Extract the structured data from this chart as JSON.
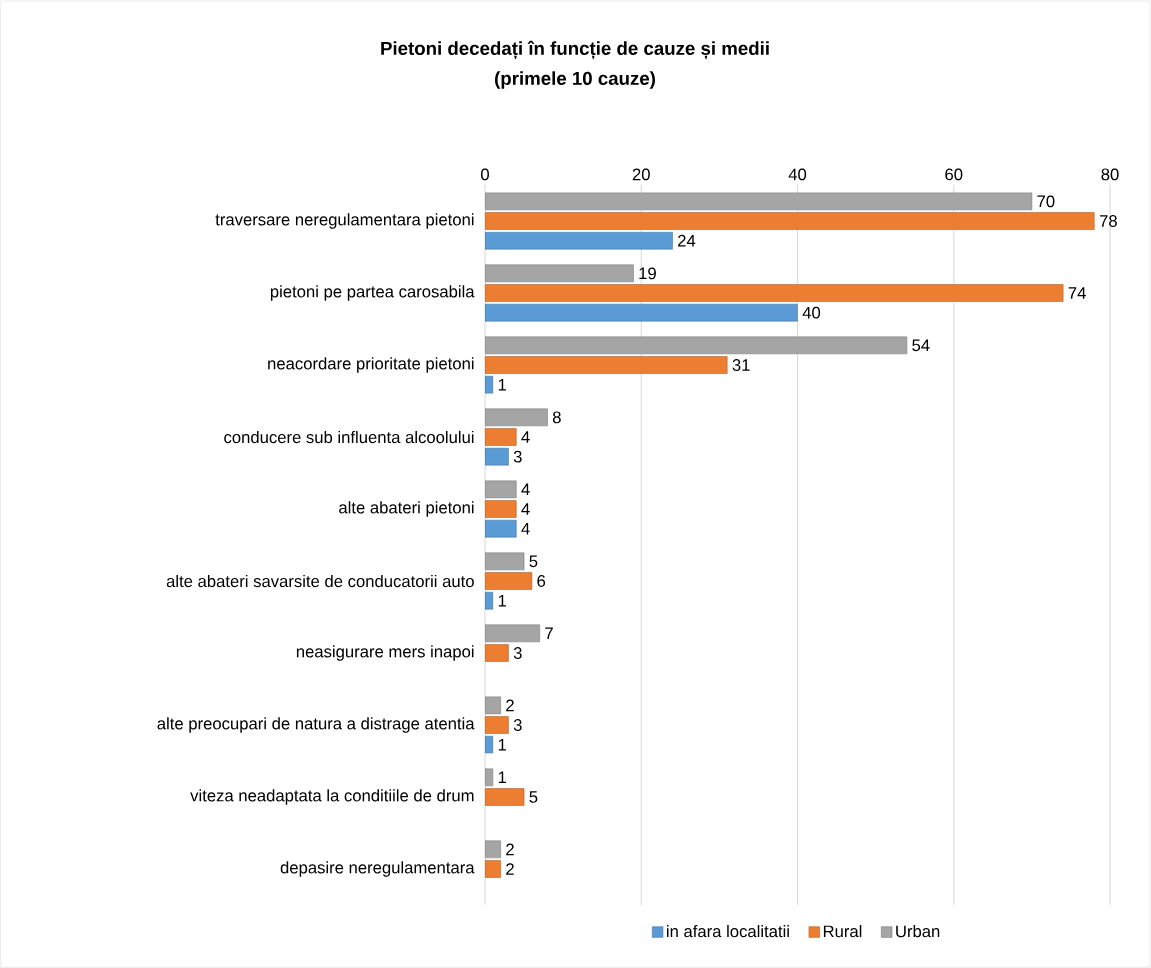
{
  "chart_data": {
    "type": "bar",
    "orientation": "horizontal",
    "title": "Pietoni decedați în funcție de cauze și medii",
    "subtitle": "(primele 10 cauze)",
    "categories": [
      "traversare neregulamentara pietoni",
      "pietoni pe partea carosabila",
      "neacordare prioritate pietoni",
      "conducere sub influenta alcoolului",
      "alte abateri pietoni",
      "alte abateri savarsite de conducatorii auto",
      "neasigurare mers inapoi",
      "alte preocupari de natura a distrage atentia",
      "viteza neadaptata la conditiile de drum",
      "depasire neregulamentara"
    ],
    "series": [
      {
        "name": "in afara localitatii",
        "color": "#5b9bd5",
        "values": [
          24,
          40,
          1,
          3,
          4,
          1,
          null,
          1,
          null,
          null
        ]
      },
      {
        "name": "Rural",
        "color": "#ed7d31",
        "values": [
          78,
          74,
          31,
          4,
          4,
          6,
          3,
          3,
          5,
          2
        ]
      },
      {
        "name": "Urban",
        "color": "#a5a5a5",
        "values": [
          70,
          19,
          54,
          8,
          4,
          5,
          7,
          2,
          1,
          2
        ]
      }
    ],
    "xlim": [
      0,
      80
    ],
    "xticks": [
      0,
      20,
      40,
      60,
      80
    ],
    "grid": "x",
    "legend": "bottom",
    "data_labels": true
  }
}
